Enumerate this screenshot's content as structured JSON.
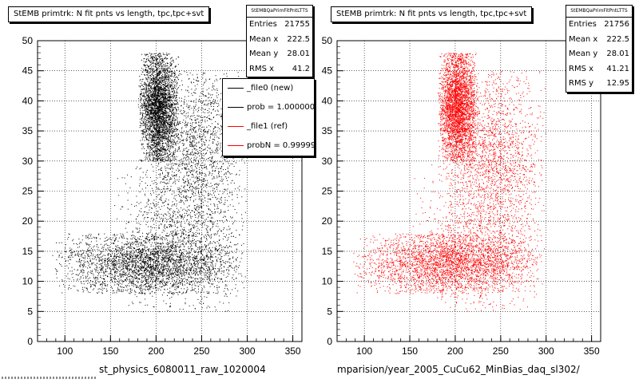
{
  "panels": {
    "left": {
      "title": "StEMB primtrk: N fit pnts vs length, tpc,tpc+svt",
      "xname": "st_physics_6080011_raw_1020004",
      "stats": {
        "name": "StEMBQaPrimFitPntLTTS",
        "rows": [
          {
            "label": "Entries",
            "value": "21755"
          },
          {
            "label": "Mean x",
            "value": "222.5"
          },
          {
            "label": "Mean y",
            "value": "28.01"
          },
          {
            "label": "RMS x",
            "value": "41.2"
          }
        ]
      },
      "legend": [
        {
          "label": "_file0 (new)",
          "color": "#000000"
        },
        {
          "label": "prob = 1.000000",
          "color": "#000000"
        },
        {
          "label": "_file1 (ref)",
          "color": "#ff0000"
        },
        {
          "label": "probN = 0.99999",
          "color": "#ff0000"
        }
      ],
      "marker_color": "#000000"
    },
    "right": {
      "title": "StEMB primtrk: N fit pnts vs length, tpc,tpc+svt",
      "xname": "mparision/year_2005_CuCu62_MinBias_daq_sl302/",
      "stats": {
        "name": "StEMBQaPrimFitPntLTTS",
        "rows": [
          {
            "label": "Entries",
            "value": "21756"
          },
          {
            "label": "Mean x",
            "value": "222.5"
          },
          {
            "label": "Mean y",
            "value": "28.01"
          },
          {
            "label": "RMS x",
            "value": "41.21"
          },
          {
            "label": "RMS y",
            "value": "12.95"
          }
        ]
      },
      "marker_color": "#ff0000"
    }
  },
  "chart_data": [
    {
      "type": "scatter",
      "title": "StEMB primtrk: N fit pnts vs length, tpc,tpc+svt",
      "xlabel": "st_physics_6080011_raw_1020004",
      "ylabel": "",
      "xlim": [
        70,
        360
      ],
      "ylim": [
        0,
        50
      ],
      "xticks": [
        100,
        150,
        200,
        250,
        300,
        350
      ],
      "yticks": [
        0,
        5,
        10,
        15,
        20,
        25,
        30,
        35,
        40,
        45,
        50
      ],
      "grid": true,
      "series": [
        {
          "name": "_file0 (new)",
          "color": "#000000",
          "entries": 21755
        }
      ],
      "density_regions": [
        {
          "x": [
            180,
            225
          ],
          "y": [
            30,
            48
          ],
          "weight": 1.0
        },
        {
          "x": [
            85,
            300
          ],
          "y": [
            8,
            18
          ],
          "weight": 0.9
        },
        {
          "x": [
            185,
            300
          ],
          "y": [
            18,
            45
          ],
          "weight": 0.5
        },
        {
          "x": [
            150,
            300
          ],
          "y": [
            5,
            30
          ],
          "weight": 0.3
        }
      ],
      "stats": {
        "entries": 21755,
        "mean_x": 222.5,
        "mean_y": 28.01,
        "rms_x": 41.2
      }
    },
    {
      "type": "scatter",
      "title": "StEMB primtrk: N fit pnts vs length, tpc,tpc+svt",
      "xlabel": "mparision/year_2005_CuCu62_MinBias_daq_sl302/",
      "ylabel": "",
      "xlim": [
        70,
        360
      ],
      "ylim": [
        0,
        50
      ],
      "xticks": [
        100,
        150,
        200,
        250,
        300,
        350
      ],
      "yticks": [
        0,
        5,
        10,
        15,
        20,
        25,
        30,
        35,
        40,
        45,
        50
      ],
      "grid": true,
      "series": [
        {
          "name": "_file1 (ref)",
          "color": "#ff0000",
          "entries": 21756
        }
      ],
      "density_regions": [
        {
          "x": [
            180,
            225
          ],
          "y": [
            30,
            48
          ],
          "weight": 1.0
        },
        {
          "x": [
            85,
            300
          ],
          "y": [
            8,
            18
          ],
          "weight": 0.9
        },
        {
          "x": [
            185,
            300
          ],
          "y": [
            18,
            45
          ],
          "weight": 0.5
        },
        {
          "x": [
            150,
            300
          ],
          "y": [
            5,
            30
          ],
          "weight": 0.3
        }
      ],
      "stats": {
        "entries": 21756,
        "mean_x": 222.5,
        "mean_y": 28.01,
        "rms_x": 41.21,
        "rms_y": 12.95
      }
    }
  ]
}
